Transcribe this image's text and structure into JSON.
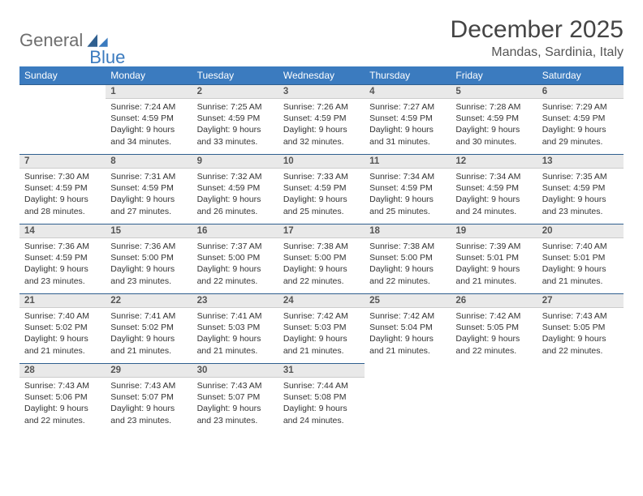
{
  "logo": {
    "textA": "General",
    "textB": "Blue"
  },
  "title": "December 2025",
  "location": "Mandas, Sardinia, Italy",
  "colors": {
    "header_bg": "#3b7bbf",
    "header_text": "#ffffff",
    "daynum_bg": "#e9e9e9",
    "rule": "#2f5f8f",
    "text": "#333333",
    "logo_gray": "#6e6e6e",
    "logo_blue": "#3b7bbf"
  },
  "weekdays": [
    "Sunday",
    "Monday",
    "Tuesday",
    "Wednesday",
    "Thursday",
    "Friday",
    "Saturday"
  ],
  "first_weekday_index": 1,
  "days": [
    {
      "n": 1,
      "sunrise": "7:24 AM",
      "sunset": "4:59 PM",
      "dl": "9 hours and 34 minutes."
    },
    {
      "n": 2,
      "sunrise": "7:25 AM",
      "sunset": "4:59 PM",
      "dl": "9 hours and 33 minutes."
    },
    {
      "n": 3,
      "sunrise": "7:26 AM",
      "sunset": "4:59 PM",
      "dl": "9 hours and 32 minutes."
    },
    {
      "n": 4,
      "sunrise": "7:27 AM",
      "sunset": "4:59 PM",
      "dl": "9 hours and 31 minutes."
    },
    {
      "n": 5,
      "sunrise": "7:28 AM",
      "sunset": "4:59 PM",
      "dl": "9 hours and 30 minutes."
    },
    {
      "n": 6,
      "sunrise": "7:29 AM",
      "sunset": "4:59 PM",
      "dl": "9 hours and 29 minutes."
    },
    {
      "n": 7,
      "sunrise": "7:30 AM",
      "sunset": "4:59 PM",
      "dl": "9 hours and 28 minutes."
    },
    {
      "n": 8,
      "sunrise": "7:31 AM",
      "sunset": "4:59 PM",
      "dl": "9 hours and 27 minutes."
    },
    {
      "n": 9,
      "sunrise": "7:32 AM",
      "sunset": "4:59 PM",
      "dl": "9 hours and 26 minutes."
    },
    {
      "n": 10,
      "sunrise": "7:33 AM",
      "sunset": "4:59 PM",
      "dl": "9 hours and 25 minutes."
    },
    {
      "n": 11,
      "sunrise": "7:34 AM",
      "sunset": "4:59 PM",
      "dl": "9 hours and 25 minutes."
    },
    {
      "n": 12,
      "sunrise": "7:34 AM",
      "sunset": "4:59 PM",
      "dl": "9 hours and 24 minutes."
    },
    {
      "n": 13,
      "sunrise": "7:35 AM",
      "sunset": "4:59 PM",
      "dl": "9 hours and 23 minutes."
    },
    {
      "n": 14,
      "sunrise": "7:36 AM",
      "sunset": "4:59 PM",
      "dl": "9 hours and 23 minutes."
    },
    {
      "n": 15,
      "sunrise": "7:36 AM",
      "sunset": "5:00 PM",
      "dl": "9 hours and 23 minutes."
    },
    {
      "n": 16,
      "sunrise": "7:37 AM",
      "sunset": "5:00 PM",
      "dl": "9 hours and 22 minutes."
    },
    {
      "n": 17,
      "sunrise": "7:38 AM",
      "sunset": "5:00 PM",
      "dl": "9 hours and 22 minutes."
    },
    {
      "n": 18,
      "sunrise": "7:38 AM",
      "sunset": "5:00 PM",
      "dl": "9 hours and 22 minutes."
    },
    {
      "n": 19,
      "sunrise": "7:39 AM",
      "sunset": "5:01 PM",
      "dl": "9 hours and 21 minutes."
    },
    {
      "n": 20,
      "sunrise": "7:40 AM",
      "sunset": "5:01 PM",
      "dl": "9 hours and 21 minutes."
    },
    {
      "n": 21,
      "sunrise": "7:40 AM",
      "sunset": "5:02 PM",
      "dl": "9 hours and 21 minutes."
    },
    {
      "n": 22,
      "sunrise": "7:41 AM",
      "sunset": "5:02 PM",
      "dl": "9 hours and 21 minutes."
    },
    {
      "n": 23,
      "sunrise": "7:41 AM",
      "sunset": "5:03 PM",
      "dl": "9 hours and 21 minutes."
    },
    {
      "n": 24,
      "sunrise": "7:42 AM",
      "sunset": "5:03 PM",
      "dl": "9 hours and 21 minutes."
    },
    {
      "n": 25,
      "sunrise": "7:42 AM",
      "sunset": "5:04 PM",
      "dl": "9 hours and 21 minutes."
    },
    {
      "n": 26,
      "sunrise": "7:42 AM",
      "sunset": "5:05 PM",
      "dl": "9 hours and 22 minutes."
    },
    {
      "n": 27,
      "sunrise": "7:43 AM",
      "sunset": "5:05 PM",
      "dl": "9 hours and 22 minutes."
    },
    {
      "n": 28,
      "sunrise": "7:43 AM",
      "sunset": "5:06 PM",
      "dl": "9 hours and 22 minutes."
    },
    {
      "n": 29,
      "sunrise": "7:43 AM",
      "sunset": "5:07 PM",
      "dl": "9 hours and 23 minutes."
    },
    {
      "n": 30,
      "sunrise": "7:43 AM",
      "sunset": "5:07 PM",
      "dl": "9 hours and 23 minutes."
    },
    {
      "n": 31,
      "sunrise": "7:44 AM",
      "sunset": "5:08 PM",
      "dl": "9 hours and 24 minutes."
    }
  ],
  "labels": {
    "sunrise": "Sunrise:",
    "sunset": "Sunset:",
    "daylight": "Daylight:"
  }
}
